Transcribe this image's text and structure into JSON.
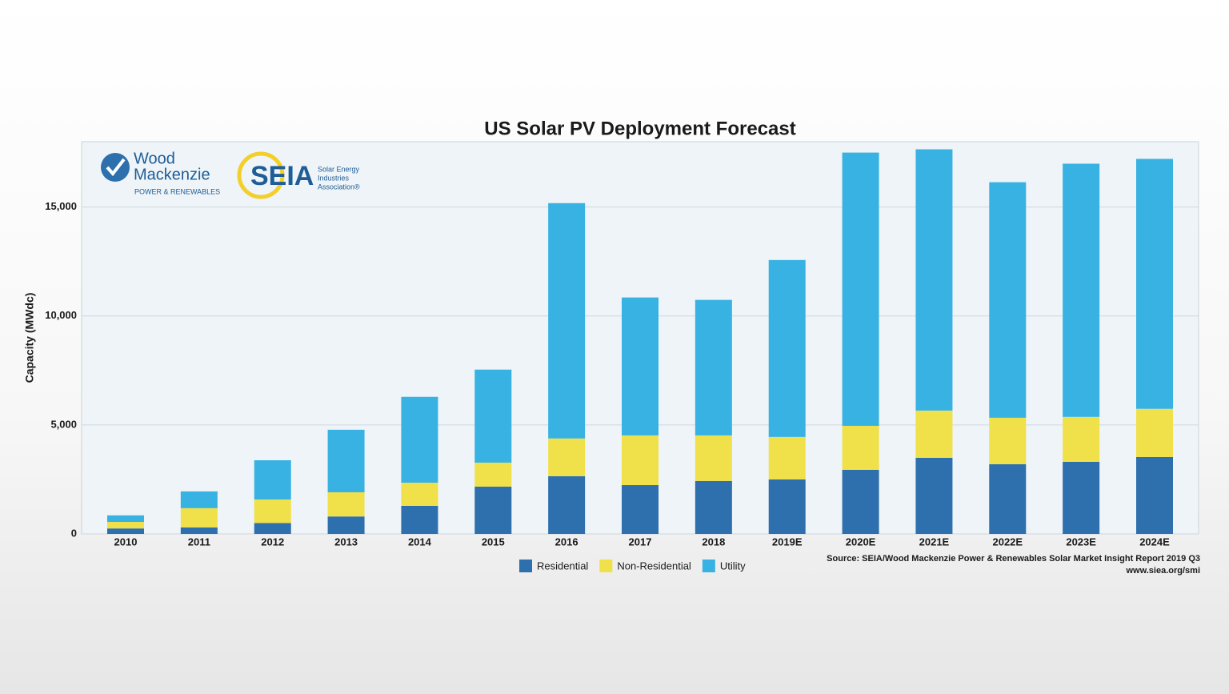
{
  "chart_data": {
    "type": "stacked_bar",
    "title": "US Solar PV Deployment Forecast",
    "y_label": "Capacity (MWdc)",
    "categories": [
      "2010",
      "2011",
      "2012",
      "2013",
      "2014",
      "2015",
      "2016",
      "2017",
      "2018",
      "2019E",
      "2020E",
      "2021E",
      "2022E",
      "2023E",
      "2024E"
    ],
    "series": [
      {
        "name": "Residential",
        "color": "#2e6fad",
        "values": [
          250,
          300,
          500,
          800,
          1290,
          2170,
          2650,
          2240,
          2430,
          2500,
          2940,
          3490,
          3200,
          3310,
          3530
        ]
      },
      {
        "name": "Non-Residential",
        "color": "#f0e04a",
        "values": [
          300,
          880,
          1080,
          1110,
          1060,
          1100,
          1730,
          2280,
          2090,
          1950,
          2020,
          2170,
          2130,
          2060,
          2210
        ]
      },
      {
        "name": "Utility",
        "color": "#38b2e3",
        "values": [
          300,
          770,
          1800,
          2870,
          3940,
          4270,
          10800,
          6330,
          6220,
          8120,
          12540,
          11990,
          10810,
          11620,
          11470
        ]
      }
    ],
    "ylim": [
      0,
      18000
    ],
    "yticks": [
      0,
      {
        "value": 5000,
        "label": "5,000"
      },
      {
        "value": 10000,
        "label": "10,000"
      },
      {
        "value": 15000,
        "label": "15,000"
      }
    ],
    "grid": true,
    "source_lines": [
      "Source: SEIA/Wood Mackenzie Power & Renewables Solar Market Insight Report 2019 Q3",
      "www.siea.org/smi"
    ]
  },
  "logos": {
    "wood_mackenzie": {
      "line1": "Wood",
      "line2": "Mackenzie",
      "tagline": "POWER & RENEWABLES"
    },
    "seia": {
      "name": "SEIA",
      "line1": "Solar Energy",
      "line2": "Industries",
      "line3": "Association®"
    }
  }
}
